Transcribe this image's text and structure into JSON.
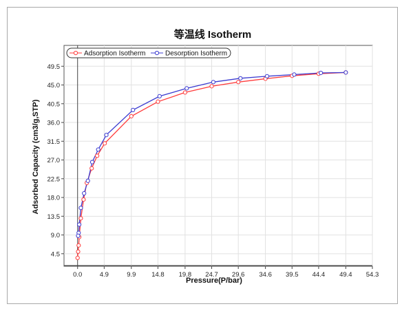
{
  "chart_data": {
    "type": "line",
    "title": "等温线 Isotherm",
    "xlabel": "Pressure(P/bar)",
    "ylabel": "Adsorbed Capacity (cm3/g,STP)",
    "xlim": [
      -2.5,
      54.3
    ],
    "ylim": [
      1.5,
      54.5
    ],
    "x_ticks": [
      "0.0",
      "4.9",
      "9.9",
      "14.8",
      "19.8",
      "24.7",
      "29.6",
      "34.6",
      "39.5",
      "44.4",
      "49.4",
      "54.3"
    ],
    "y_ticks": [
      "4.5",
      "9.0",
      "13.5",
      "18.0",
      "22.5",
      "27.0",
      "31.5",
      "36.0",
      "40.5",
      "45.0",
      "49.5"
    ],
    "grid": true,
    "legend_position": "top-left",
    "series": [
      {
        "name": "Adsorption Isotherm",
        "color": "#ff3b3b",
        "x": [
          0.0,
          0.1,
          0.2,
          0.3,
          0.6,
          1.1,
          1.7,
          2.6,
          3.6,
          5.0,
          9.9,
          14.8,
          19.8,
          24.7,
          29.6,
          34.6,
          39.5,
          44.4,
          49.4
        ],
        "y": [
          3.5,
          5.0,
          6.5,
          8.5,
          13.0,
          17.5,
          21.5,
          25.0,
          28.0,
          31.0,
          37.5,
          41.0,
          43.2,
          44.7,
          45.7,
          46.5,
          47.2,
          47.7,
          48.0
        ]
      },
      {
        "name": "Desorption Isotherm",
        "color": "#3b3bd0",
        "x": [
          49.4,
          44.8,
          39.9,
          34.9,
          30.0,
          25.0,
          20.1,
          15.1,
          10.2,
          5.3,
          3.8,
          2.7,
          1.9,
          1.2,
          0.6,
          0.3,
          0.2,
          0.1
        ],
        "y": [
          48.0,
          47.9,
          47.5,
          47.1,
          46.6,
          45.7,
          44.2,
          42.3,
          39.0,
          33.0,
          29.5,
          26.5,
          22.0,
          19.0,
          15.5,
          11.5,
          9.5,
          8.8
        ]
      }
    ]
  }
}
